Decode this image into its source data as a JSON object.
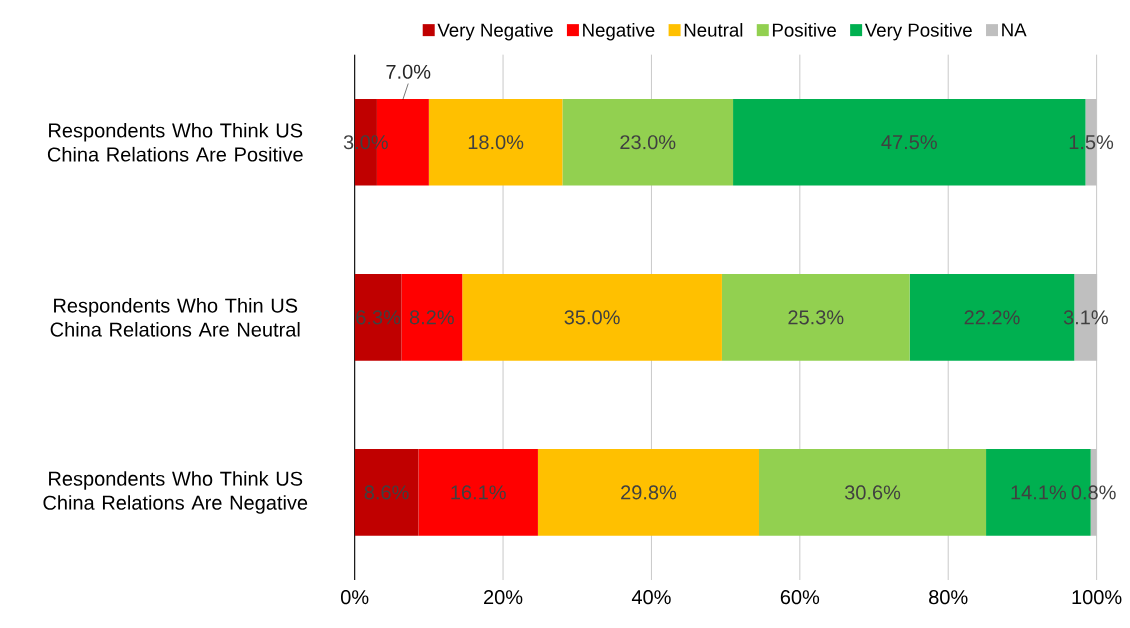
{
  "chart_data": {
    "type": "bar",
    "orientation": "horizontal",
    "stacked": true,
    "categories": [
      "Respondents Who Think US China Relations Are Positive",
      "Respondents Who Thin US China Relations Are Neutral",
      "Respondents Who Think US China Relations Are Negative"
    ],
    "series": [
      {
        "name": "Very Negative",
        "color": "#c00000",
        "values": [
          3.0,
          6.3,
          8.6
        ],
        "value_labels": [
          "3.0%",
          "6.3%",
          "8.6%"
        ]
      },
      {
        "name": "Negative",
        "color": "#ff0000",
        "values": [
          7.0,
          8.2,
          16.1
        ],
        "value_labels": [
          "7.0%",
          "8.2%",
          "16.1%"
        ]
      },
      {
        "name": "Neutral",
        "color": "#ffc000",
        "values": [
          18.0,
          35.0,
          29.8
        ],
        "value_labels": [
          "18.0%",
          "35.0%",
          "29.8%"
        ]
      },
      {
        "name": "Positive",
        "color": "#92d050",
        "values": [
          23.0,
          25.3,
          30.6
        ],
        "value_labels": [
          "23.0%",
          "25.3%",
          "30.6%"
        ]
      },
      {
        "name": "Very Positive",
        "color": "#00b050",
        "values": [
          47.5,
          22.2,
          14.1
        ],
        "value_labels": [
          "47.5%",
          "22.2%",
          "14.1%"
        ]
      },
      {
        "name": "NA",
        "color": "#bfbfbf",
        "values": [
          1.5,
          3.1,
          0.8
        ],
        "value_labels": [
          "1.5%",
          "3.1%",
          "0.8%"
        ]
      }
    ],
    "xlim": [
      0,
      100.1
    ],
    "xticks": [
      {
        "value": 0,
        "label": "0%"
      },
      {
        "value": 20,
        "label": "20%"
      },
      {
        "value": 40,
        "label": "40%"
      },
      {
        "value": 60,
        "label": "60%"
      },
      {
        "value": 80,
        "label": "80%"
      },
      {
        "value": 100,
        "label": "100%"
      }
    ],
    "grid": "x",
    "legend": "top"
  }
}
